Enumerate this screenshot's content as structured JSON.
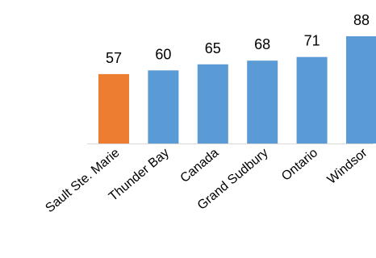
{
  "chart_data": {
    "type": "bar",
    "categories": [
      "Sault Ste. Marie",
      "Thunder Bay",
      "Canada",
      "Grand Sudbury",
      "Ontario",
      "Windsor"
    ],
    "values": [
      57,
      60,
      65,
      68,
      71,
      88
    ],
    "colors": [
      "#ED7D31",
      "#5B9BD5",
      "#5B9BD5",
      "#5B9BD5",
      "#5B9BD5",
      "#5B9BD5"
    ],
    "ylim": [
      0,
      100
    ],
    "grid": false,
    "legend": "none",
    "axis_color": "#D9D9D9"
  }
}
